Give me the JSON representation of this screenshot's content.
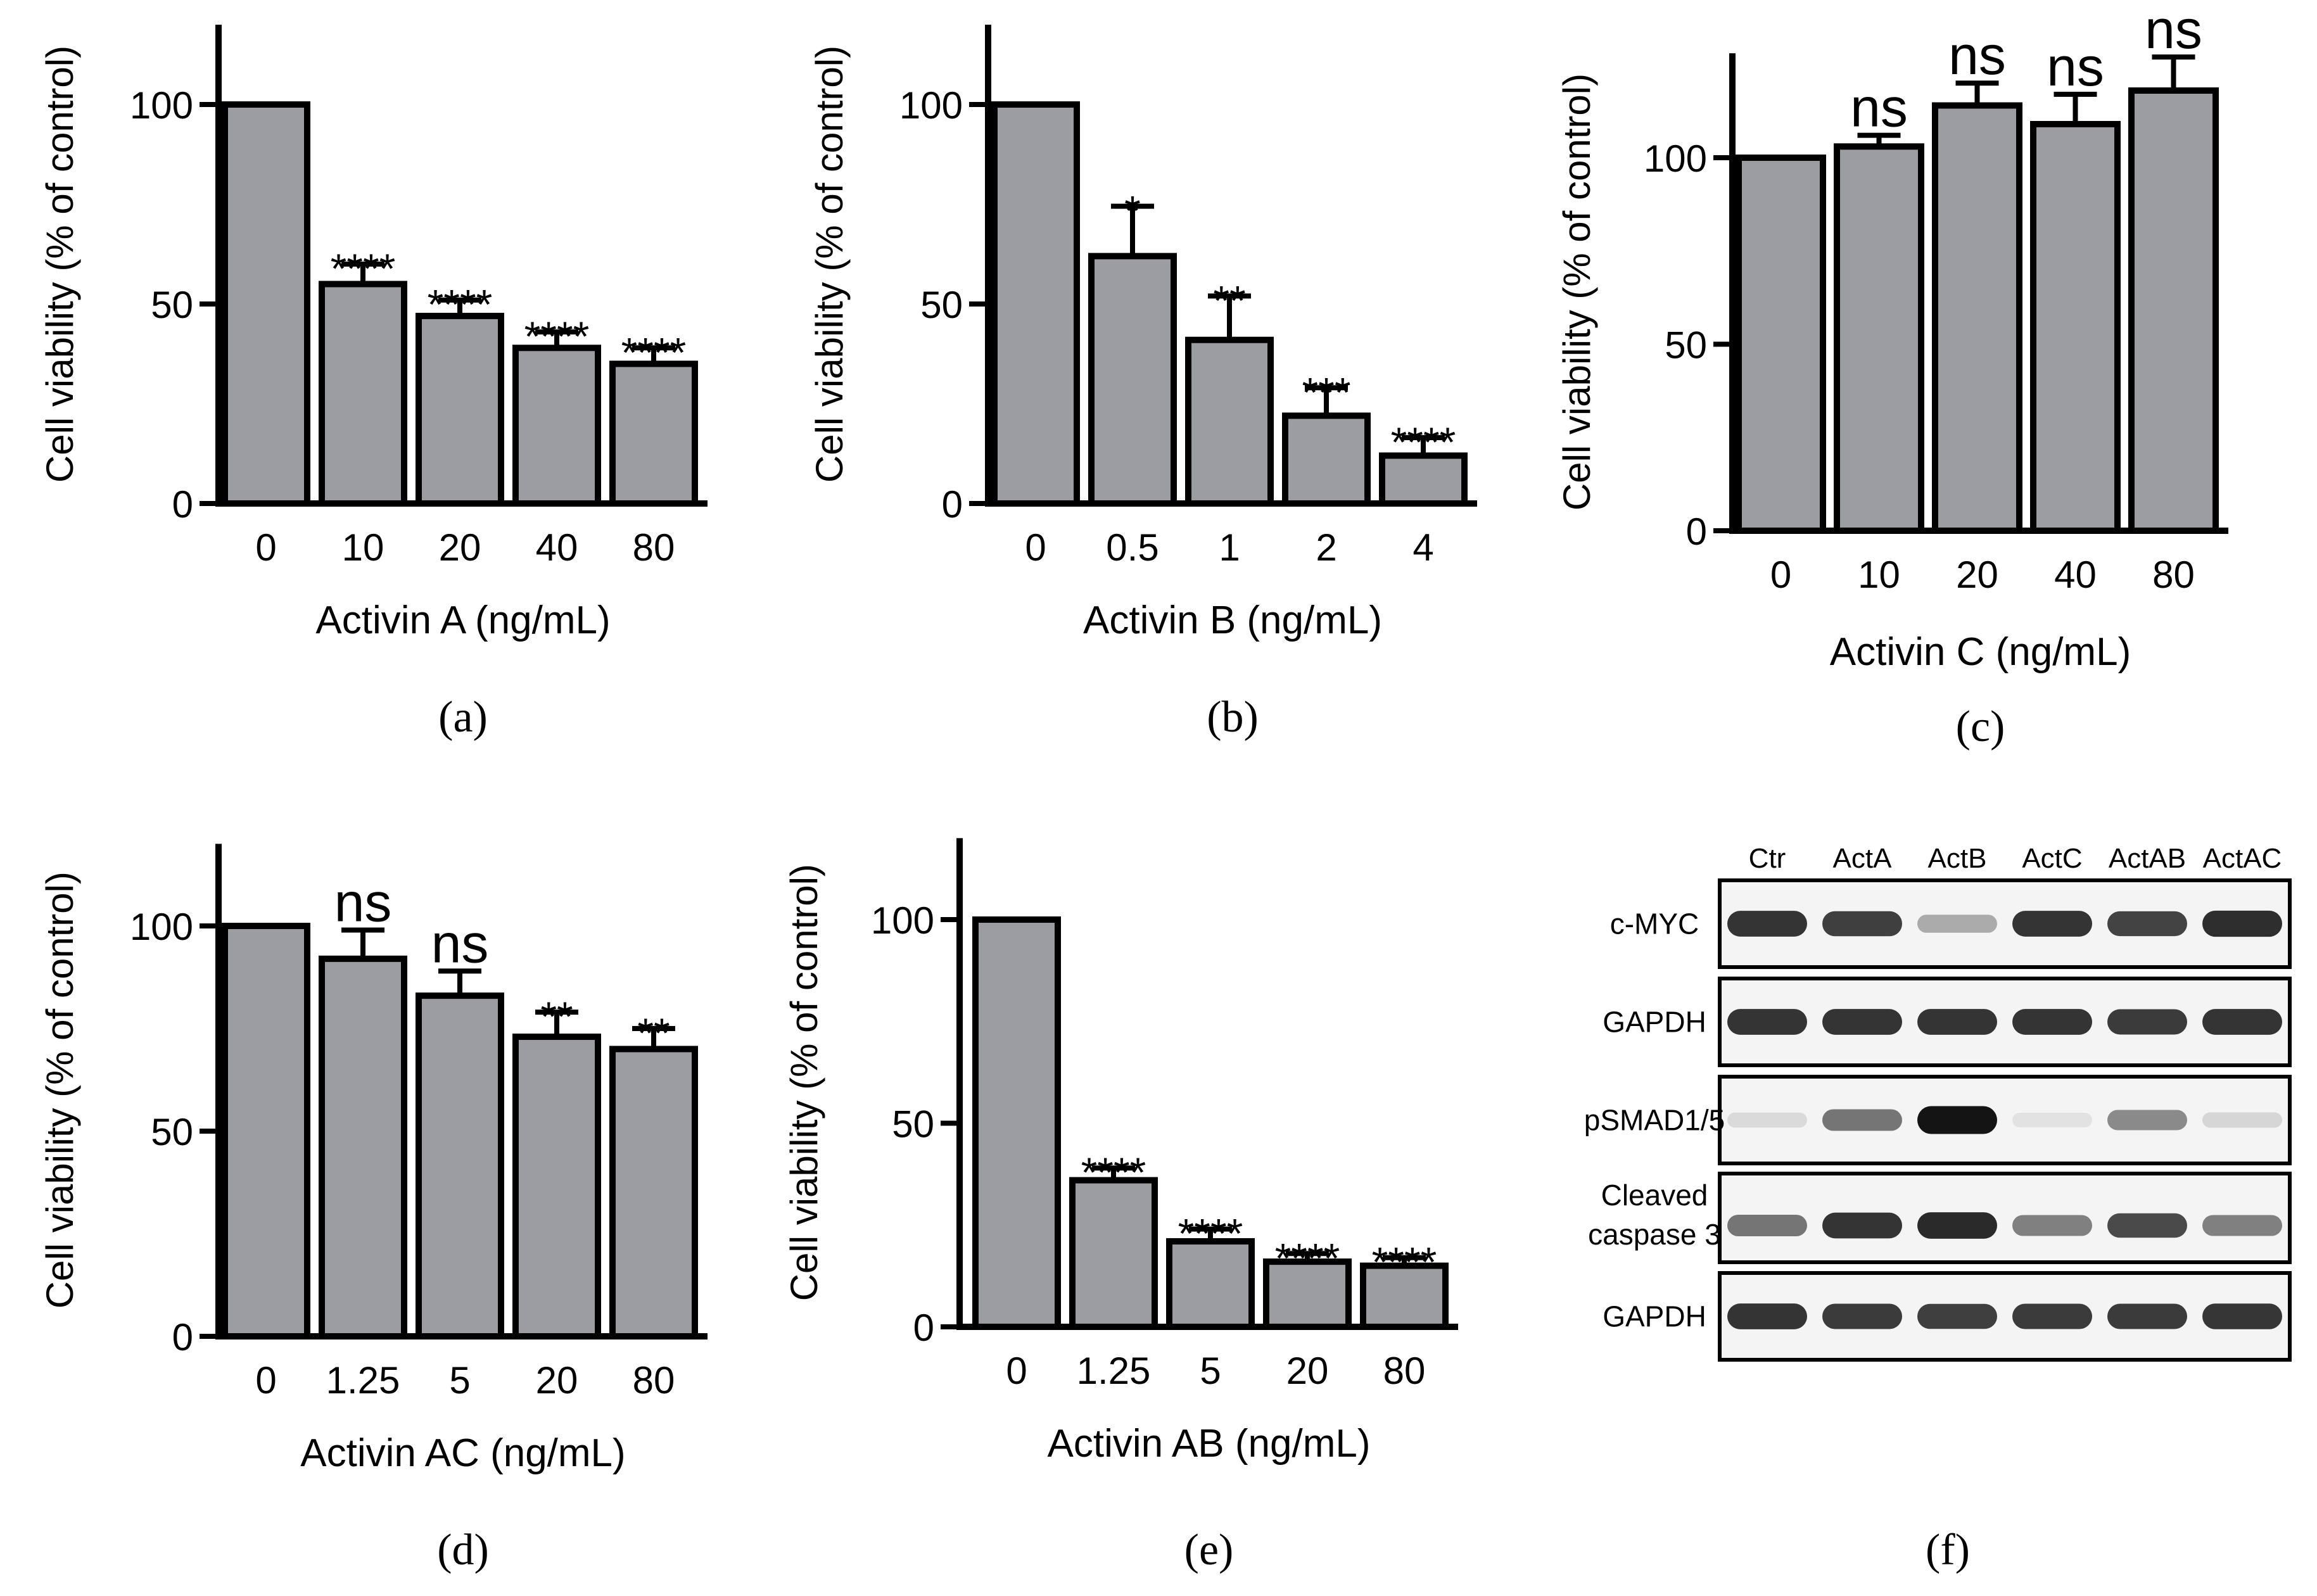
{
  "chart_data": [
    {
      "type": "bar",
      "panel_label": "(a)",
      "title": "",
      "xlabel": "Activin A (ng/mL)",
      "ylabel": "Cell viability (% of control)",
      "ylim": [
        0,
        120
      ],
      "yticks": [
        0,
        50,
        100
      ],
      "categories": [
        "0",
        "10",
        "20",
        "40",
        "80"
      ],
      "values": [
        100,
        55,
        47,
        39,
        35
      ],
      "errors": [
        0,
        5,
        4,
        4,
        4
      ],
      "annotations": [
        "",
        "****",
        "****",
        "****",
        "****"
      ],
      "bar_color": "#9c9da3"
    },
    {
      "type": "bar",
      "panel_label": "(b)",
      "title": "",
      "xlabel": "Activin B (ng/mL)",
      "ylabel": "Cell viability (% of control)",
      "ylim": [
        0,
        120
      ],
      "yticks": [
        0,
        50,
        100
      ],
      "categories": [
        "0",
        "0.5",
        "1",
        "2",
        "4"
      ],
      "values": [
        100,
        62,
        41,
        22,
        12
      ],
      "errors": [
        0,
        12.5,
        11,
        7,
        4.5
      ],
      "annotations": [
        "",
        "*",
        "**",
        "***",
        "****"
      ],
      "bar_color": "#9c9da3"
    },
    {
      "type": "bar",
      "panel_label": "(c)",
      "title": "",
      "xlabel": "Activin C (ng/mL)",
      "ylabel": "Cell viability (% of control)",
      "ylim": [
        0,
        128
      ],
      "yticks": [
        0,
        50,
        100
      ],
      "categories": [
        "0",
        "10",
        "20",
        "40",
        "80"
      ],
      "values": [
        100,
        103,
        114,
        109,
        118
      ],
      "errors": [
        0,
        3,
        6,
        8,
        9
      ],
      "annotations": [
        "",
        "ns",
        "ns",
        "ns",
        "ns"
      ],
      "bar_color": "#9c9da3"
    },
    {
      "type": "bar",
      "panel_label": "(d)",
      "title": "",
      "xlabel": "Activin AC (ng/mL)",
      "ylabel": "Cell viability (% of control)",
      "ylim": [
        0,
        120
      ],
      "yticks": [
        0,
        50,
        100
      ],
      "categories": [
        "0",
        "1.25",
        "5",
        "20",
        "80"
      ],
      "values": [
        100,
        92,
        83,
        73,
        70
      ],
      "errors": [
        0,
        7,
        6,
        6,
        5
      ],
      "annotations": [
        "",
        "ns",
        "ns",
        "**",
        "**"
      ],
      "bar_color": "#9c9da3"
    },
    {
      "type": "bar",
      "panel_label": "(e)",
      "title": "",
      "xlabel": "Activin AB (ng/mL)",
      "ylabel": "Cell viability (% of control)",
      "ylim": [
        0,
        120
      ],
      "yticks": [
        0,
        50,
        100
      ],
      "categories": [
        "0",
        "1.25",
        "5",
        "20",
        "80"
      ],
      "values": [
        100,
        36,
        21,
        16,
        15
      ],
      "errors": [
        0,
        3,
        3,
        2,
        2
      ],
      "annotations": [
        "",
        "****",
        "****",
        "****",
        "****"
      ],
      "bar_color": "#9c9da3"
    }
  ],
  "western_blot": {
    "panel_label": "(f)",
    "lanes": [
      "Ctr",
      "ActA",
      "ActB",
      "ActC",
      "ActAB",
      "ActAC"
    ],
    "rows": [
      {
        "label_lines": [
          "c-MYC"
        ],
        "intensities": [
          0.85,
          0.8,
          0.3,
          0.85,
          0.78,
          0.88
        ]
      },
      {
        "label_lines": [
          "GAPDH"
        ],
        "intensities": [
          0.85,
          0.85,
          0.85,
          0.85,
          0.82,
          0.85
        ]
      },
      {
        "label_lines": [
          "pSMAD1/5"
        ],
        "intensities": [
          0.08,
          0.55,
          1.0,
          0.04,
          0.45,
          0.1
        ]
      },
      {
        "label_lines": [
          "Cleaved",
          "caspase 3"
        ],
        "intensities": [
          0.55,
          0.85,
          0.9,
          0.5,
          0.75,
          0.5
        ]
      },
      {
        "label_lines": [
          "GAPDH"
        ],
        "intensities": [
          0.85,
          0.82,
          0.8,
          0.82,
          0.82,
          0.84
        ]
      }
    ]
  }
}
